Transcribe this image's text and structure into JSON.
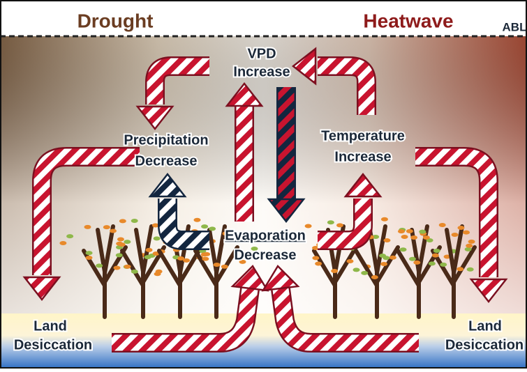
{
  "header": {
    "left": "Drought",
    "right": "Heatwave",
    "edge": "ABL"
  },
  "nodes": [
    {
      "lines": [
        "VPD",
        "Increase"
      ]
    },
    {
      "lines": [
        "Precipitation",
        "Decrease"
      ]
    },
    {
      "lines": [
        "Temperature",
        "Increase"
      ]
    },
    {
      "lines": [
        "Evaporation",
        "Decrease"
      ]
    },
    {
      "lines": [
        "Land",
        "Desiccation"
      ]
    },
    {
      "lines": [
        "Land",
        "Desiccation"
      ]
    }
  ]
}
